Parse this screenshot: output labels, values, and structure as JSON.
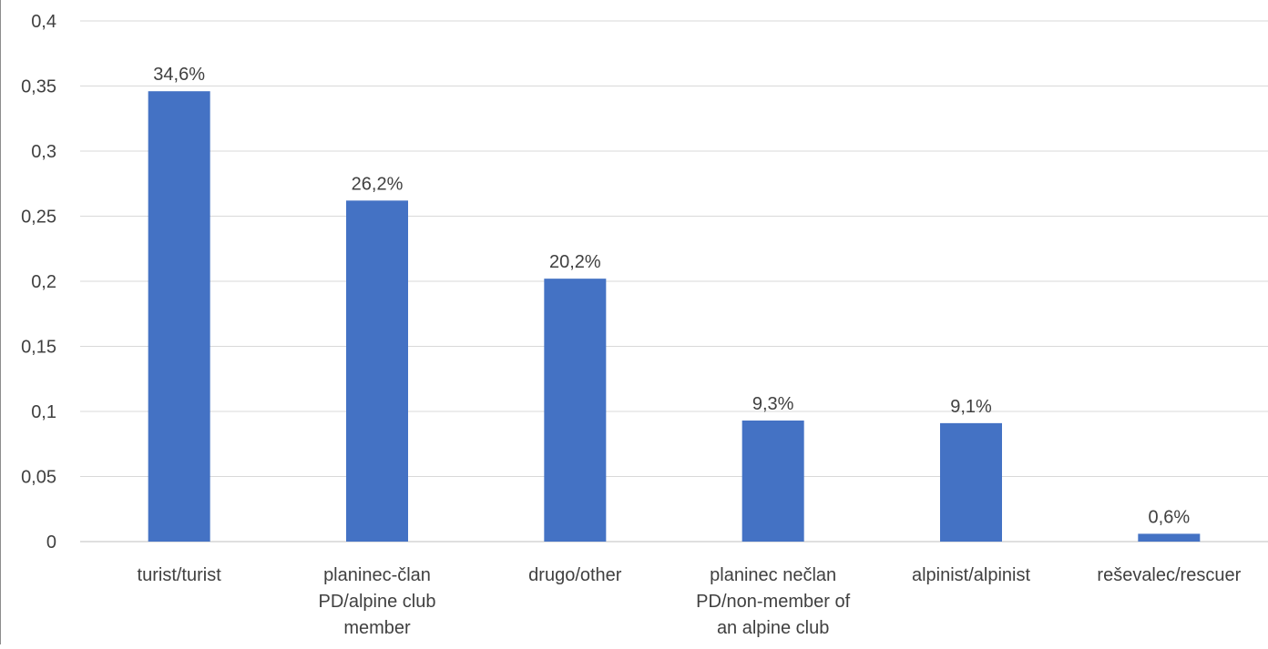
{
  "chart_data": {
    "type": "bar",
    "categories": [
      [
        "turist/turist"
      ],
      [
        "planinec-član",
        "PD/alpine club",
        "member"
      ],
      [
        "drugo/other"
      ],
      [
        "planinec nečlan",
        "PD/non-member of",
        "an alpine club"
      ],
      [
        "alpinist/alpinist"
      ],
      [
        "reševalec/rescuer"
      ]
    ],
    "values": [
      0.346,
      0.262,
      0.202,
      0.093,
      0.091,
      0.006
    ],
    "data_labels": [
      "34,6%",
      "26,2%",
      "20,2%",
      "9,3%",
      "9,1%",
      "0,6%"
    ],
    "y_ticks": [
      "0",
      "0,05",
      "0,1",
      "0,15",
      "0,2",
      "0,25",
      "0,3",
      "0,35",
      "0,4"
    ],
    "ylim": [
      0,
      0.4
    ],
    "title": "",
    "xlabel": "",
    "ylabel": "",
    "grid": true,
    "legend": "none",
    "colors": {
      "bar": "#4472C4",
      "grid": "#d9d9d9",
      "text": "#404040",
      "axis": "#bfbfbf"
    }
  }
}
